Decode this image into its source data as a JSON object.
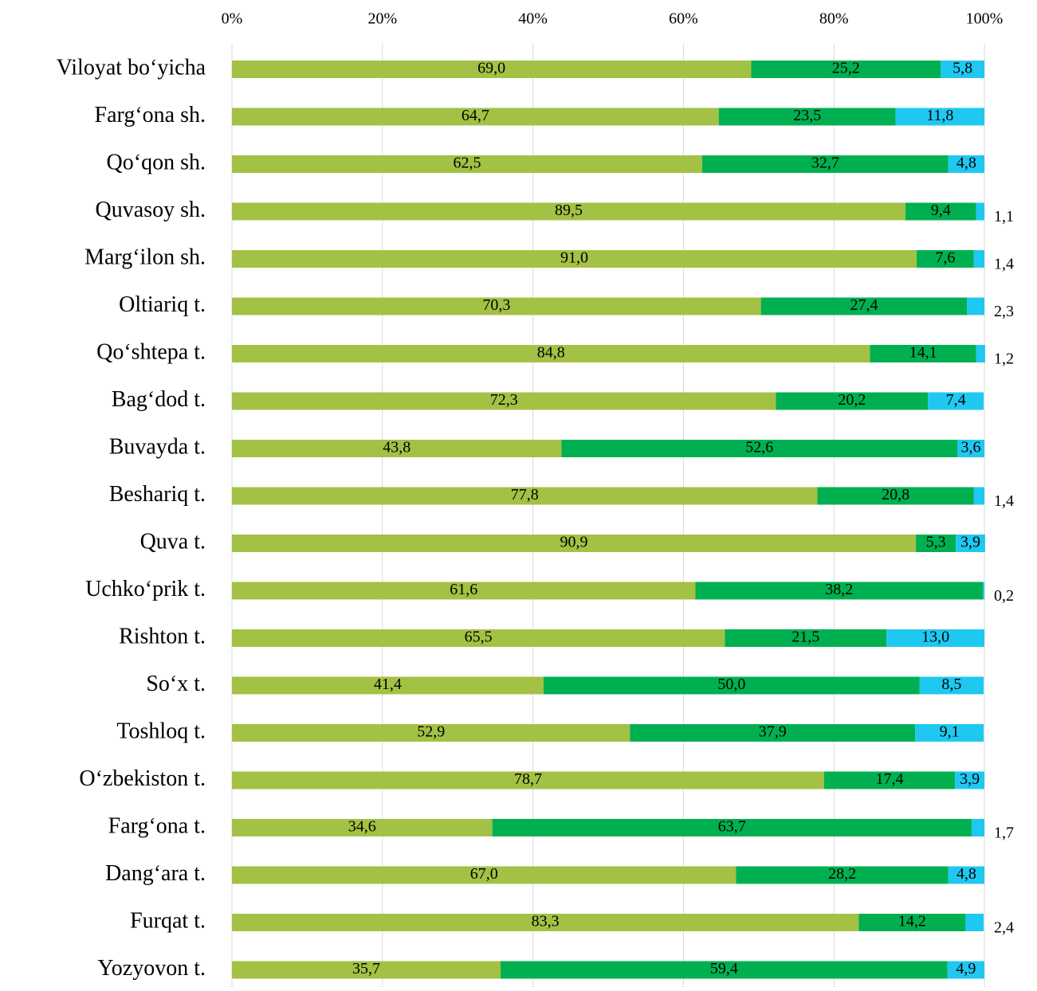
{
  "chart_data": {
    "type": "stacked-bar-horizontal",
    "categories": [
      "Viloyat bo‘yicha",
      "Farg‘ona sh.",
      "Qo‘qon sh.",
      "Quvasoy sh.",
      "Marg‘ilon sh.",
      "Oltiariq t.",
      "Qo‘shtepa t.",
      "Bag‘dod t.",
      "Buvayda t.",
      "Beshariq t.",
      "Quva t.",
      "Uchko‘prik t.",
      "Rishton t.",
      "So‘x t.",
      "Toshloq t.",
      "O‘zbekiston t.",
      "Farg‘ona t.",
      "Dang‘ara t.",
      "Furqat t.",
      "Yozyovon t."
    ],
    "series": [
      {
        "color": "#a3c144",
        "values": [
          69.0,
          64.7,
          62.5,
          89.5,
          91.0,
          70.3,
          84.8,
          72.3,
          43.8,
          77.8,
          90.9,
          61.6,
          65.5,
          41.4,
          52.9,
          78.7,
          34.6,
          67.0,
          83.3,
          35.7
        ],
        "value_labels": [
          "69,0",
          "64,7",
          "62,5",
          "89,5",
          "91,0",
          "70,3",
          "84,8",
          "72,3",
          "43,8",
          "77,8",
          "90,9",
          "61,6",
          "65,5",
          "41,4",
          "52,9",
          "78,7",
          "34,6",
          "67,0",
          "83,3",
          "35,7"
        ]
      },
      {
        "color": "#00b050",
        "values": [
          25.2,
          23.5,
          32.7,
          9.4,
          7.6,
          27.4,
          14.1,
          20.2,
          52.6,
          20.8,
          5.3,
          38.2,
          21.5,
          50.0,
          37.9,
          17.4,
          63.7,
          28.2,
          14.2,
          59.4
        ],
        "value_labels": [
          "25,2",
          "23,5",
          "32,7",
          "9,4",
          "7,6",
          "27,4",
          "14,1",
          "20,2",
          "52,6",
          "20,8",
          "5,3",
          "38,2",
          "21,5",
          "50,0",
          "37,9",
          "17,4",
          "63,7",
          "28,2",
          "14,2",
          "59,4"
        ]
      },
      {
        "color": "#1fc8f0",
        "values": [
          5.8,
          11.8,
          4.8,
          1.1,
          1.4,
          2.3,
          1.2,
          7.4,
          3.6,
          1.4,
          3.9,
          0.2,
          13.0,
          8.5,
          9.1,
          3.9,
          1.7,
          4.8,
          2.4,
          4.9
        ],
        "value_labels": [
          "5,8",
          "11,8",
          "4,8",
          "1,1",
          "1,4",
          "2,3",
          "1,2",
          "7,4",
          "3,6",
          "1,4",
          "3,9",
          "0,2",
          "13,0",
          "8,5",
          "9,1",
          "3,9",
          "1,7",
          "4,8",
          "2,4",
          "4,9"
        ]
      }
    ],
    "xlim": [
      0,
      100
    ],
    "xticks": [
      {
        "value": 0,
        "label": "0%"
      },
      {
        "value": 20,
        "label": "20%"
      },
      {
        "value": 40,
        "label": "40%"
      },
      {
        "value": 60,
        "label": "60%"
      },
      {
        "value": 80,
        "label": "80%"
      },
      {
        "value": 100,
        "label": "100%"
      }
    ],
    "grid": true
  }
}
